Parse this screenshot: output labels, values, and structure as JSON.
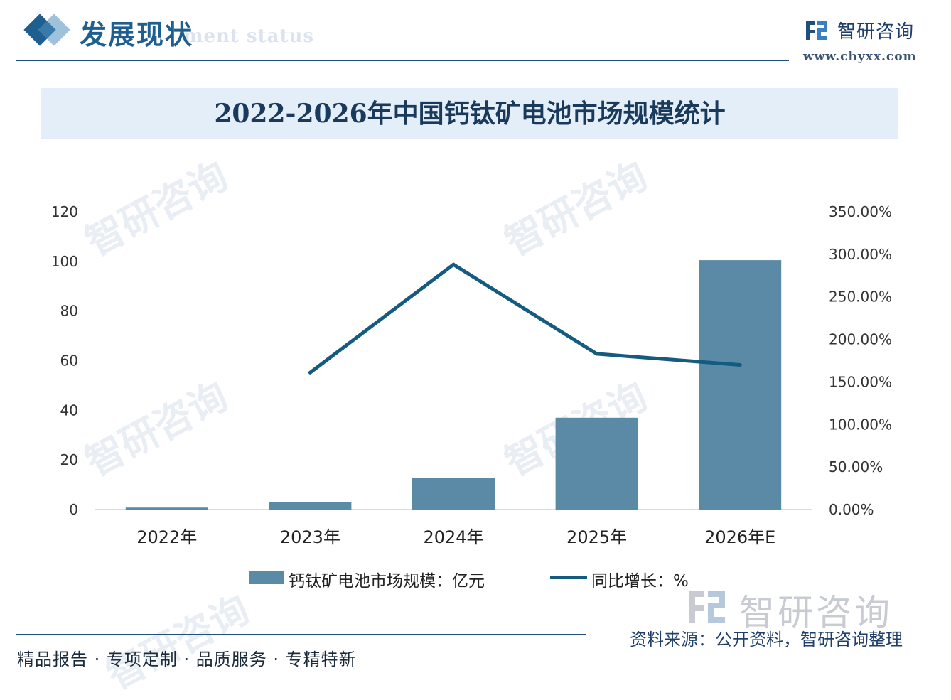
{
  "header": {
    "title": "发展现状",
    "subtitle": "ment status",
    "brand_name": "智研咨询",
    "brand_url": "www.chyxx.com"
  },
  "banner": {
    "title": "2022-2026年中国钙钛矿电池市场规模统计"
  },
  "watermark": {
    "text": "智研咨询"
  },
  "chart_data": {
    "type": "bar",
    "title": "2022-2026年中国钙钛矿电池市场规模统计",
    "categories": [
      "2022年",
      "2023年",
      "2024年",
      "2025年",
      "2026年E"
    ],
    "series": [
      {
        "name": "钙钛矿电池市场规模：亿元",
        "type": "bar",
        "axis": "left",
        "color": "#5b8aa6",
        "values": [
          0.8,
          3.1,
          12.8,
          37.0,
          100.5
        ]
      },
      {
        "name": "同比增长：%",
        "type": "line",
        "axis": "right",
        "color": "#155b80",
        "values": [
          null,
          161.0,
          288.0,
          183.0,
          170.0
        ]
      }
    ],
    "y_left": {
      "ylim": [
        0,
        120
      ],
      "ticks": [
        "0",
        "20",
        "40",
        "60",
        "80",
        "100",
        "120"
      ]
    },
    "y_right": {
      "ylim": [
        0,
        350
      ],
      "ticks": [
        "0.00%",
        "50.00%",
        "100.00%",
        "150.00%",
        "200.00%",
        "250.00%",
        "300.00%",
        "350.00%"
      ]
    },
    "xlabel": "",
    "ylabel": "",
    "legend": "bottom",
    "grid": false
  },
  "footer": {
    "logo_text": "智研咨询",
    "source": "资料来源：公开资料，智研咨询整理",
    "slogan": "精品报告 · 专项定制 · 品质服务 · 专精特新"
  }
}
